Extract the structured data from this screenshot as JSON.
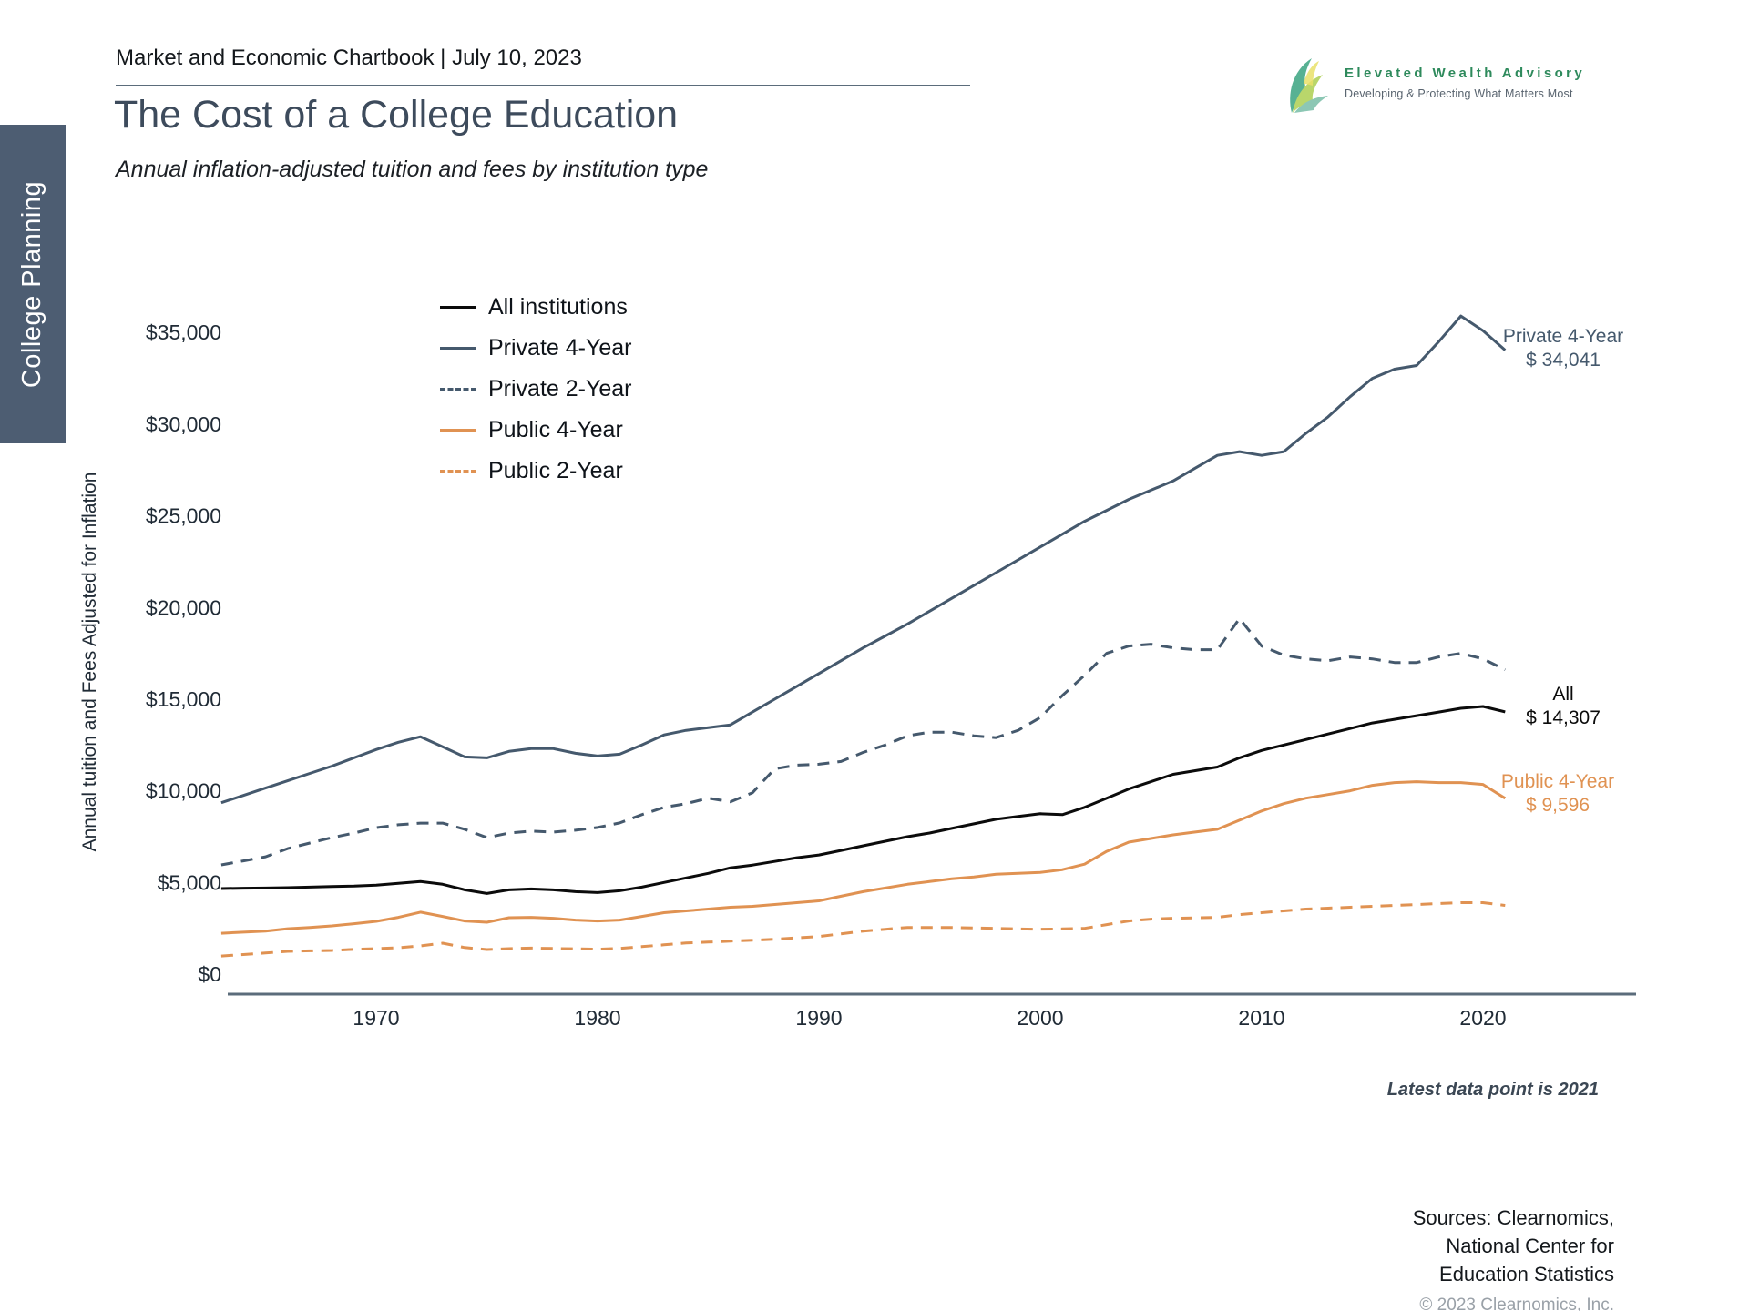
{
  "header": {
    "title": "Market and Economic Chartbook | July 10, 2023"
  },
  "logo": {
    "name": "Elevated Wealth Advisory",
    "tagline": "Developing & Protecting What Matters Most",
    "brand_green": "#2e8a5c"
  },
  "sidebar": {
    "label": "College Planning",
    "bg_color": "#4d5d72"
  },
  "page": {
    "title": "The Cost of a College Education",
    "subtitle": "Annual inflation-adjusted tuition and fees by institution type"
  },
  "chart_data": {
    "type": "line",
    "ylabel": "Annual tuition and Fees Adjusted for Inflation",
    "grid": false,
    "legend_position": "upper-left-inside",
    "x_ticks": [
      1970,
      1980,
      1990,
      2000,
      2010,
      2020
    ],
    "y_ticks": [
      {
        "label": "$0",
        "value": 0
      },
      {
        "label": "$5,000",
        "value": 5000
      },
      {
        "label": "$10,000",
        "value": 10000
      },
      {
        "label": "$15,000",
        "value": 15000
      },
      {
        "label": "$20,000",
        "value": 20000
      },
      {
        "label": "$25,000",
        "value": 25000
      },
      {
        "label": "$30,000",
        "value": 30000
      },
      {
        "label": "$35,000",
        "value": 35000
      }
    ],
    "ylim": [
      0,
      37000
    ],
    "start_year": 1963,
    "end_year": 2021,
    "series": [
      {
        "name": "All institutions",
        "color": "#0b0b0b",
        "style": "solid",
        "values": [
          4670,
          4690,
          4700,
          4720,
          4750,
          4780,
          4800,
          4850,
          4950,
          5050,
          4900,
          4600,
          4400,
          4600,
          4650,
          4600,
          4500,
          4450,
          4550,
          4750,
          5000,
          5250,
          5500,
          5800,
          5950,
          6150,
          6350,
          6500,
          6750,
          7000,
          7250,
          7500,
          7700,
          7950,
          8200,
          8450,
          8600,
          8750,
          8700,
          9100,
          9600,
          10100,
          10500,
          10900,
          11100,
          11300,
          11800,
          12200,
          12500,
          12800,
          13100,
          13400,
          13700,
          13900,
          14100,
          14300,
          14500,
          14600,
          14307
        ]
      },
      {
        "name": "Private 4-Year",
        "color": "#45596d",
        "style": "solid",
        "values": [
          9350,
          9750,
          10150,
          10550,
          10950,
          11350,
          11800,
          12250,
          12650,
          12950,
          12400,
          11850,
          11800,
          12150,
          12300,
          12300,
          12050,
          11900,
          12000,
          12500,
          13050,
          13300,
          13450,
          13600,
          14300,
          15000,
          15700,
          16400,
          17100,
          17800,
          18450,
          19100,
          19800,
          20500,
          21200,
          21900,
          22600,
          23300,
          24000,
          24700,
          25300,
          25900,
          26400,
          26900,
          27600,
          28300,
          28500,
          28300,
          28500,
          29500,
          30400,
          31500,
          32500,
          33000,
          33200,
          34500,
          35900,
          35100,
          34041
        ]
      },
      {
        "name": "Private 2-Year",
        "color": "#45596d",
        "style": "dashed",
        "values": [
          5960,
          6180,
          6400,
          6850,
          7150,
          7450,
          7700,
          7990,
          8150,
          8240,
          8240,
          7900,
          7450,
          7700,
          7800,
          7750,
          7850,
          8000,
          8250,
          8700,
          9100,
          9300,
          9600,
          9400,
          9900,
          11200,
          11400,
          11450,
          11600,
          12100,
          12500,
          13000,
          13200,
          13200,
          13000,
          12900,
          13300,
          14000,
          15200,
          16300,
          17500,
          17900,
          18000,
          17800,
          17700,
          17700,
          19400,
          17900,
          17400,
          17200,
          17100,
          17300,
          17200,
          17000,
          17000,
          17300,
          17500,
          17200,
          16600
        ]
      },
      {
        "name": "Public 4-Year",
        "color": "#e09252",
        "style": "solid",
        "values": [
          2230,
          2290,
          2350,
          2480,
          2550,
          2630,
          2750,
          2880,
          3100,
          3380,
          3150,
          2900,
          2830,
          3080,
          3100,
          3050,
          2950,
          2900,
          2950,
          3150,
          3350,
          3450,
          3550,
          3650,
          3700,
          3800,
          3900,
          4000,
          4250,
          4500,
          4700,
          4900,
          5050,
          5200,
          5300,
          5450,
          5500,
          5550,
          5700,
          6000,
          6700,
          7200,
          7400,
          7600,
          7750,
          7900,
          8400,
          8900,
          9300,
          9600,
          9800,
          10000,
          10300,
          10450,
          10500,
          10450,
          10450,
          10350,
          9596
        ]
      },
      {
        "name": "Public 2-Year",
        "color": "#e09252",
        "style": "dashed",
        "values": [
          990,
          1070,
          1150,
          1240,
          1270,
          1290,
          1350,
          1390,
          1440,
          1540,
          1690,
          1450,
          1340,
          1390,
          1420,
          1400,
          1380,
          1360,
          1400,
          1500,
          1600,
          1700,
          1750,
          1800,
          1850,
          1900,
          1980,
          2050,
          2200,
          2350,
          2450,
          2550,
          2550,
          2550,
          2520,
          2500,
          2470,
          2450,
          2470,
          2500,
          2700,
          2900,
          3000,
          3050,
          3070,
          3100,
          3250,
          3350,
          3450,
          3550,
          3600,
          3650,
          3700,
          3750,
          3800,
          3850,
          3900,
          3900,
          3750
        ]
      }
    ],
    "end_labels": [
      {
        "name": "Private 4-Year",
        "value_label": "$ 34,041",
        "color": "#45596d"
      },
      {
        "name": "All",
        "value_label": "$ 14,307",
        "color": "#0b0b0b"
      },
      {
        "name": "Public 4-Year",
        "value_label": "$ 9,596",
        "color": "#e09252"
      }
    ],
    "footnote": "Latest data point is 2021"
  },
  "footer": {
    "sources_lines": [
      "Sources: Clearnomics,",
      "National Center for",
      "Education Statistics"
    ],
    "copyright": "© 2023 Clearnomics, Inc."
  }
}
